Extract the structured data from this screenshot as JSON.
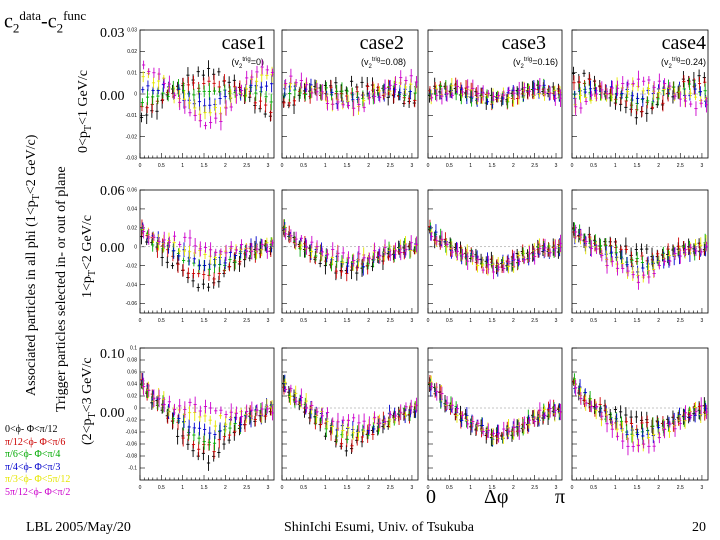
{
  "title": {
    "base1": "c",
    "sub1": "2",
    "sup1": "data",
    "dash": "-c",
    "sub2": "2",
    "sup2": "func"
  },
  "left_label_outer": {
    "pre": "Associated particles in all phi  (1<p",
    "sub": "T",
    "post": "<2 GeV/c)"
  },
  "left_label_inner": {
    "pre": "Trigger particles selected in- or out of plane",
    "row1_pre": "0<p",
    "row1_sub": "T",
    "row1_post": "<1 GeV/c",
    "row2_pre": "1<p",
    "row2_sub": "T",
    "row2_post": "<2 GeV/c",
    "row3_pre": "(2<p",
    "row3_sub": "T",
    "row3_post": "<3 GeV/c"
  },
  "cases": [
    {
      "name": "case1",
      "v2": "(v",
      "v2sub": "2",
      "v2sup": "trig",
      "v2val": "=0)"
    },
    {
      "name": "case2",
      "v2": "(v",
      "v2sub": "2",
      "v2sup": "trig",
      "v2val": "=0.08)"
    },
    {
      "name": "case3",
      "v2": "(v",
      "v2sub": "2",
      "v2sup": "trig",
      "v2val": "=0.16)"
    },
    {
      "name": "case4",
      "v2": "(v",
      "v2sub": "2",
      "v2sup": "trig",
      "v2val": "=0.24)"
    }
  ],
  "row_labels": [
    {
      "top": "0.03",
      "zero": "0.00"
    },
    {
      "top": "0.06",
      "zero": "0.00"
    },
    {
      "top": "0.10",
      "zero": "0.00"
    }
  ],
  "x_axis": {
    "start": "0",
    "mid": "Δφ",
    "end": "π"
  },
  "legend": [
    {
      "label": "0<ϕ- Φ<π/12",
      "color": "#000000"
    },
    {
      "label": "π/12<ϕ- Φ<π/6",
      "color": "#cc0000"
    },
    {
      "label": "π/6<ϕ- Φ<π/4",
      "color": "#00aa00"
    },
    {
      "label": "π/4<ϕ- Φ<π/3",
      "color": "#0000cc"
    },
    {
      "label": "π/3<ϕ- Φ<5π/12",
      "color": "#e6e600"
    },
    {
      "label": "5π/12<ϕ- Φ<π/2",
      "color": "#cc00cc"
    }
  ],
  "footer": {
    "left": "LBL 2005/May/20",
    "center": "ShinIchi Esumi, Univ. of Tsukuba",
    "right": "20"
  },
  "chart_data": {
    "type": "scatter",
    "title": "c2data - c2func",
    "xlabel": "Δφ",
    "ylabel": "c2data-c2func",
    "xlim": [
      0,
      3.14
    ],
    "ticks_x": [
      "0",
      "0.5",
      "1",
      "1.5",
      "2",
      "2.5",
      "3"
    ],
    "rows": [
      {
        "ylim": [
          -0.03,
          0.03
        ],
        "ticks_y": [
          "0.03",
          "0.02",
          "0.01",
          "0",
          "-0.01",
          "-0.02",
          "-0.03"
        ]
      },
      {
        "ylim": [
          -0.07,
          0.06
        ],
        "ticks_y": [
          "0.06",
          "0.04",
          "0.02",
          "0",
          "-0.02",
          "-0.04",
          "-0.06"
        ]
      },
      {
        "ylim": [
          -0.12,
          0.1
        ],
        "ticks_y": [
          "0.1",
          "0.08",
          "0.06",
          "0.04",
          "0.02",
          "0",
          "-0.02",
          "-0.04",
          "-0.06",
          "-0.08",
          "-0.1"
        ]
      }
    ],
    "series": [
      {
        "name": "0<ϕ-Φ<π/12",
        "color": "#000000"
      },
      {
        "name": "π/12<ϕ-Φ<π/6",
        "color": "#cc0000"
      },
      {
        "name": "π/6<ϕ-Φ<π/4",
        "color": "#00aa00"
      },
      {
        "name": "π/4<ϕ-Φ<π/3",
        "color": "#0000cc"
      },
      {
        "name": "π/3<ϕ-Φ<5π/12",
        "color": "#e6e600"
      },
      {
        "name": "5π/12<ϕ-Φ<π/2",
        "color": "#cc00cc"
      }
    ],
    "panels_note": "3 rows (trigger pT bins) x 4 columns (case1..case4); each panel shows 6 series of ~25 points vs Δφ"
  }
}
